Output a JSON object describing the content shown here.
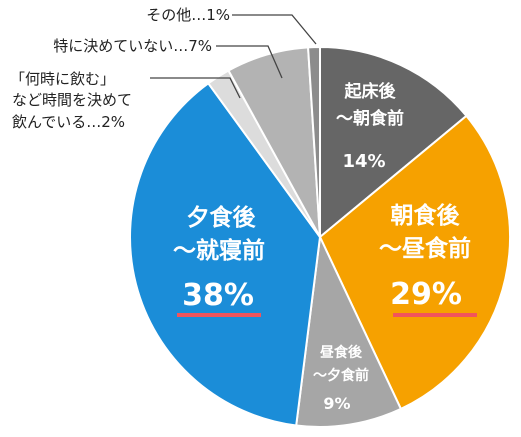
{
  "chart_data": {
    "type": "pie",
    "unit": "%",
    "start": "12 o'clock, clockwise",
    "slices": [
      {
        "line1": "起床後",
        "line2": "～朝食前",
        "pct": "14%",
        "value": 14,
        "color": "#666666"
      },
      {
        "line1": "朝食後",
        "line2": "～昼食前",
        "pct": "29%",
        "value": 29,
        "color": "#f6a100"
      },
      {
        "line1": "昼食後",
        "line2": "～夕食前",
        "pct": "9%",
        "value": 9,
        "color": "#a6a6a6"
      },
      {
        "line1": "夕食後",
        "line2": "～就寝前",
        "pct": "38%",
        "value": 38,
        "color": "#1b8dd8"
      },
      {
        "line1": "「何時に飲む」",
        "line2": "など時間を決めて",
        "line3": "飲んでいる…2%",
        "value": 2,
        "color": "#dcdcdc"
      },
      {
        "line1": "特に決めていない…7%",
        "value": 7,
        "color": "#b3b3b3"
      },
      {
        "line1": "その他…1%",
        "value": 1,
        "color": "#8c8c8c"
      }
    ],
    "emphasis_underline_color": "#f2545b"
  }
}
